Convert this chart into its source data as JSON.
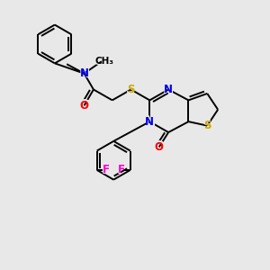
{
  "background_color": "#e8e8e8",
  "fig_size": [
    3.0,
    3.0
  ],
  "dpi": 100,
  "atom_colors": {
    "C": "#000000",
    "N": "#0000ee",
    "O": "#ff0000",
    "S": "#ccaa00",
    "F": "#ff00cc",
    "H": "#000000"
  },
  "bond_color": "#000000",
  "bond_width": 1.4,
  "font_size_atom": 8.5
}
